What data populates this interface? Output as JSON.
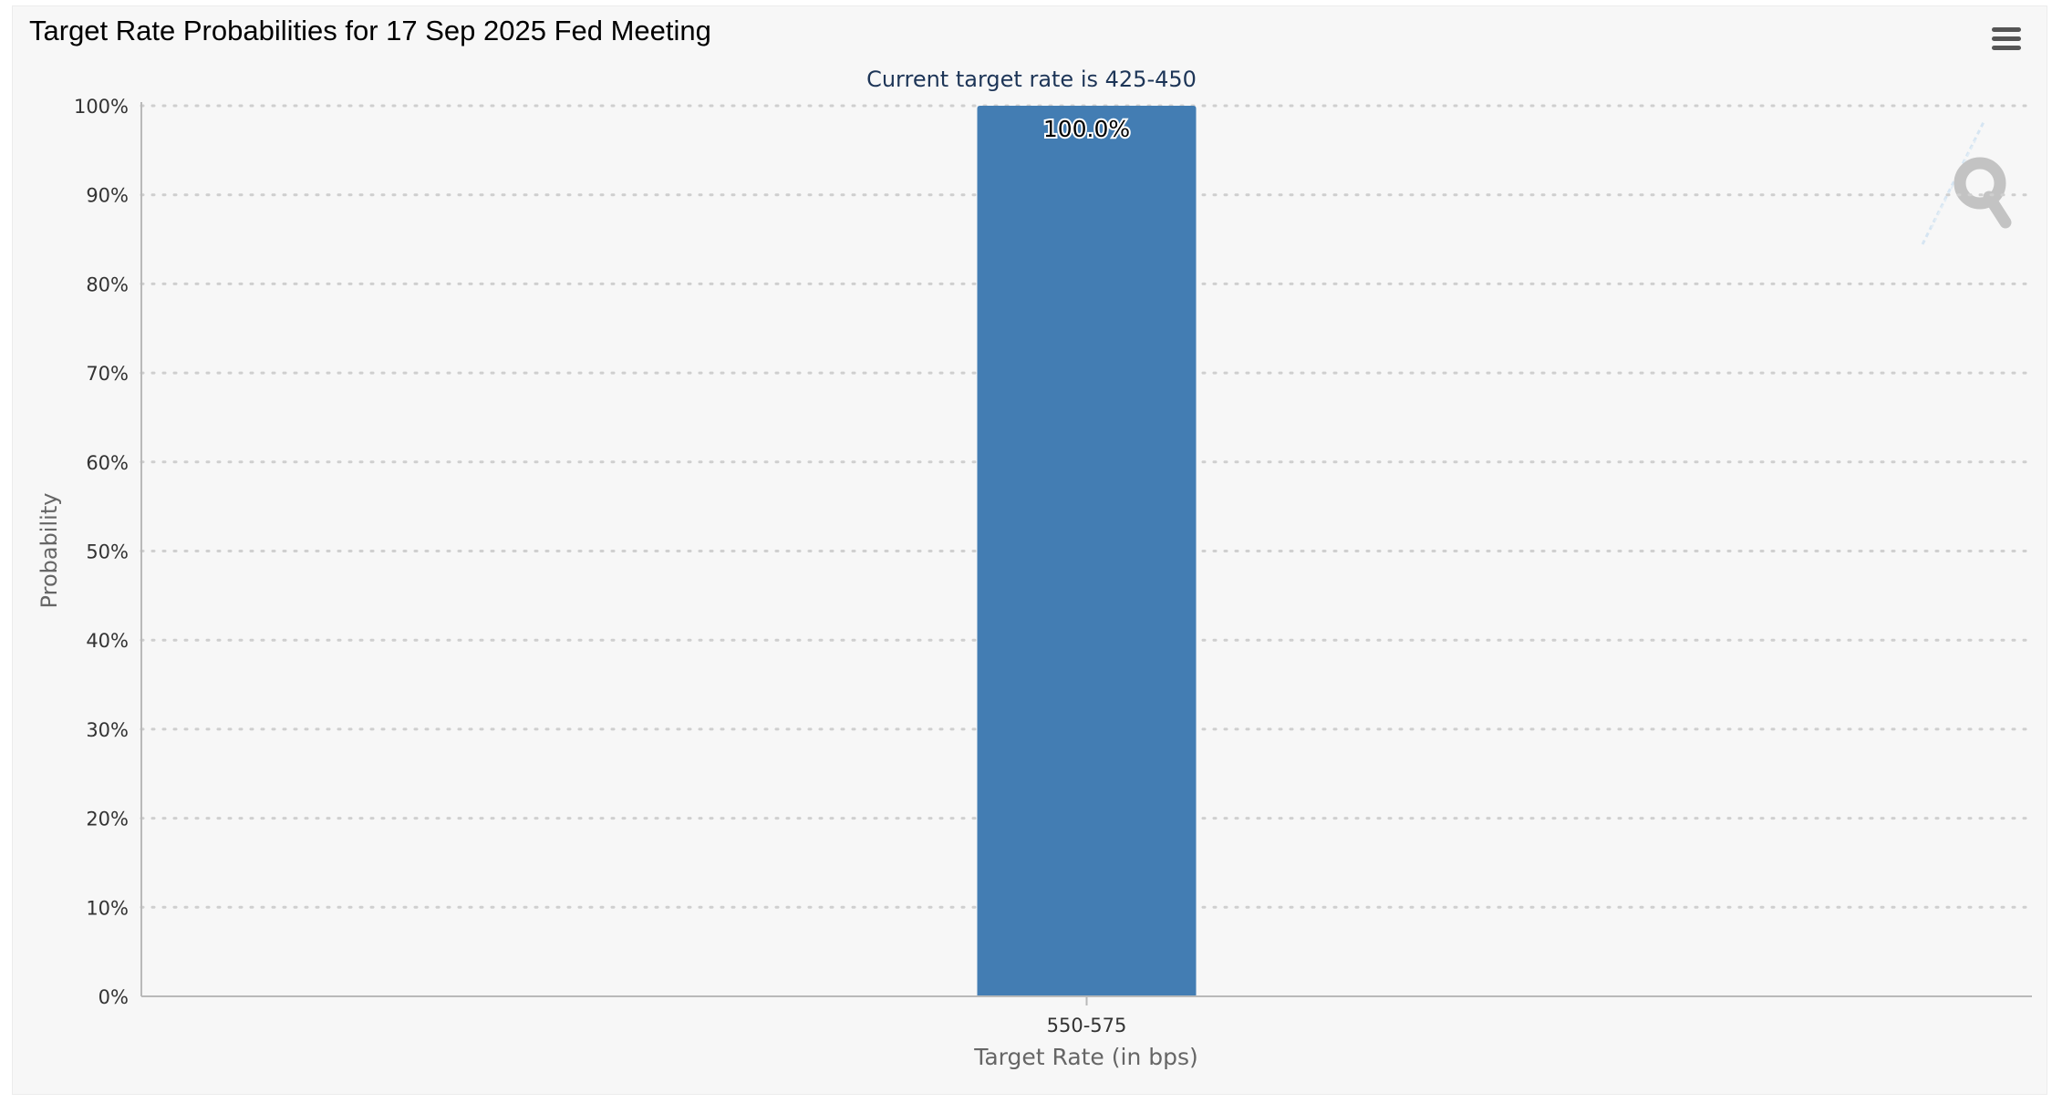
{
  "window": {
    "title": "Target Rate Probabilities for 17 Sep 2025 Fed Meeting",
    "menu_icon": "hamburger-menu-icon",
    "watermark_icon": "quikstrike-q-logo-icon"
  },
  "chart_data": {
    "type": "bar",
    "title": "Target Rate Probabilities for 17 Sep 2025 Fed Meeting",
    "subtitle": "Current target rate is 425-450",
    "xlabel": "Target Rate (in bps)",
    "ylabel": "Probability",
    "categories": [
      "550-575"
    ],
    "values": [
      100.0
    ],
    "data_labels": [
      "100.0%"
    ],
    "ylim": [
      0,
      100
    ],
    "yticks": [
      0,
      10,
      20,
      30,
      40,
      50,
      60,
      70,
      80,
      90,
      100
    ],
    "ytick_labels": [
      "0%",
      "10%",
      "20%",
      "30%",
      "40%",
      "50%",
      "60%",
      "70%",
      "80%",
      "90%",
      "100%"
    ],
    "grid": true,
    "grid_style": "dotted",
    "legend": "none",
    "colors": {
      "bar": "#437db3",
      "subtitle": "#1d3557",
      "axis_text": "#333333",
      "axis_title": "#666666",
      "grid": "#cfcfcf",
      "background": "#f7f7f7"
    }
  }
}
